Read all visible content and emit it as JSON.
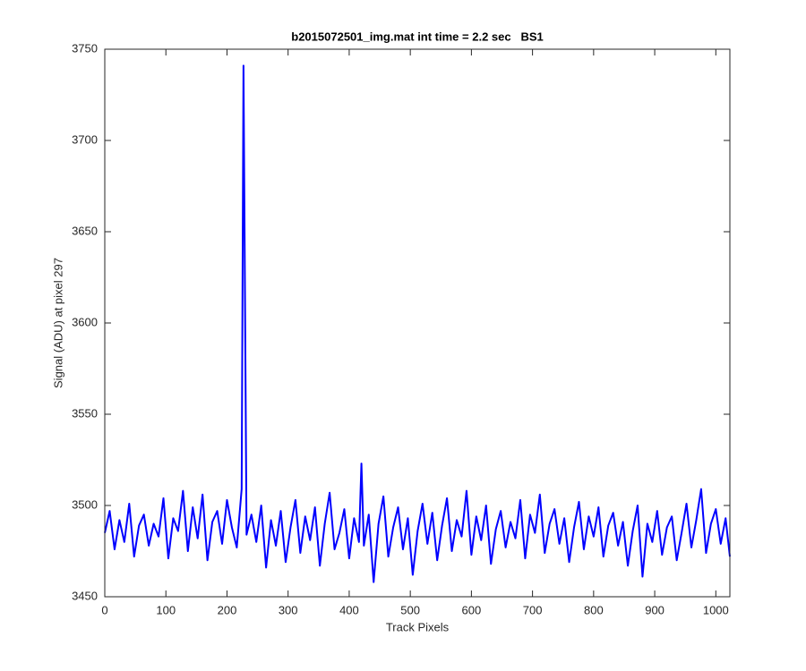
{
  "chart_data": {
    "type": "line",
    "title": "b2015072501_img.mat int time = 2.2 sec   BS1",
    "xlabel": "Track Pixels",
    "ylabel": "Signal (ADU) at pixel 297",
    "xlim": [
      0,
      1023
    ],
    "ylim": [
      3450,
      3750
    ],
    "xticks": [
      0,
      100,
      200,
      300,
      400,
      500,
      600,
      700,
      800,
      900,
      1000
    ],
    "yticks": [
      3450,
      3500,
      3550,
      3600,
      3650,
      3700,
      3750
    ],
    "grid": false,
    "series": [
      {
        "color": "#0000ff",
        "x": [
          0,
          8,
          16,
          24,
          32,
          40,
          48,
          56,
          64,
          72,
          80,
          88,
          96,
          104,
          112,
          120,
          128,
          136,
          144,
          152,
          160,
          168,
          176,
          184,
          192,
          200,
          208,
          216,
          224,
          227,
          232,
          240,
          248,
          256,
          264,
          272,
          280,
          288,
          296,
          304,
          312,
          320,
          328,
          336,
          344,
          352,
          360,
          368,
          376,
          384,
          392,
          400,
          408,
          416,
          420,
          424,
          432,
          440,
          448,
          456,
          464,
          472,
          480,
          488,
          496,
          504,
          512,
          520,
          528,
          536,
          544,
          552,
          560,
          568,
          576,
          584,
          592,
          600,
          608,
          616,
          624,
          632,
          640,
          648,
          656,
          664,
          672,
          680,
          688,
          696,
          704,
          712,
          720,
          728,
          736,
          744,
          752,
          760,
          768,
          776,
          784,
          792,
          800,
          808,
          816,
          824,
          832,
          840,
          848,
          856,
          864,
          872,
          880,
          888,
          896,
          904,
          912,
          920,
          928,
          936,
          944,
          952,
          960,
          968,
          976,
          984,
          992,
          1000,
          1008,
          1016,
          1023
        ],
        "values": [
          3485,
          3497,
          3476,
          3492,
          3480,
          3501,
          3472,
          3489,
          3495,
          3478,
          3490,
          3483,
          3504,
          3471,
          3493,
          3486,
          3508,
          3475,
          3499,
          3482,
          3506,
          3470,
          3491,
          3497,
          3479,
          3503,
          3488,
          3477,
          3509,
          3741,
          3484,
          3495,
          3480,
          3500,
          3466,
          3492,
          3478,
          3497,
          3469,
          3488,
          3503,
          3474,
          3494,
          3481,
          3499,
          3467,
          3490,
          3507,
          3476,
          3485,
          3498,
          3471,
          3493,
          3480,
          3523,
          3478,
          3495,
          3458,
          3490,
          3505,
          3472,
          3488,
          3499,
          3476,
          3493,
          3462,
          3486,
          3501,
          3479,
          3496,
          3470,
          3489,
          3504,
          3475,
          3492,
          3483,
          3508,
          3473,
          3494,
          3481,
          3500,
          3468,
          3487,
          3497,
          3477,
          3491,
          3482,
          3503,
          3471,
          3495,
          3485,
          3506,
          3474,
          3490,
          3498,
          3479,
          3493,
          3469,
          3488,
          3502,
          3476,
          3494,
          3483,
          3499,
          3472,
          3489,
          3496,
          3478,
          3491,
          3467,
          3486,
          3500,
          3461,
          3490,
          3480,
          3497,
          3473,
          3488,
          3494,
          3470,
          3485,
          3501,
          3477,
          3492,
          3509,
          3474,
          3490,
          3498,
          3479,
          3493,
          3472
        ]
      }
    ]
  }
}
